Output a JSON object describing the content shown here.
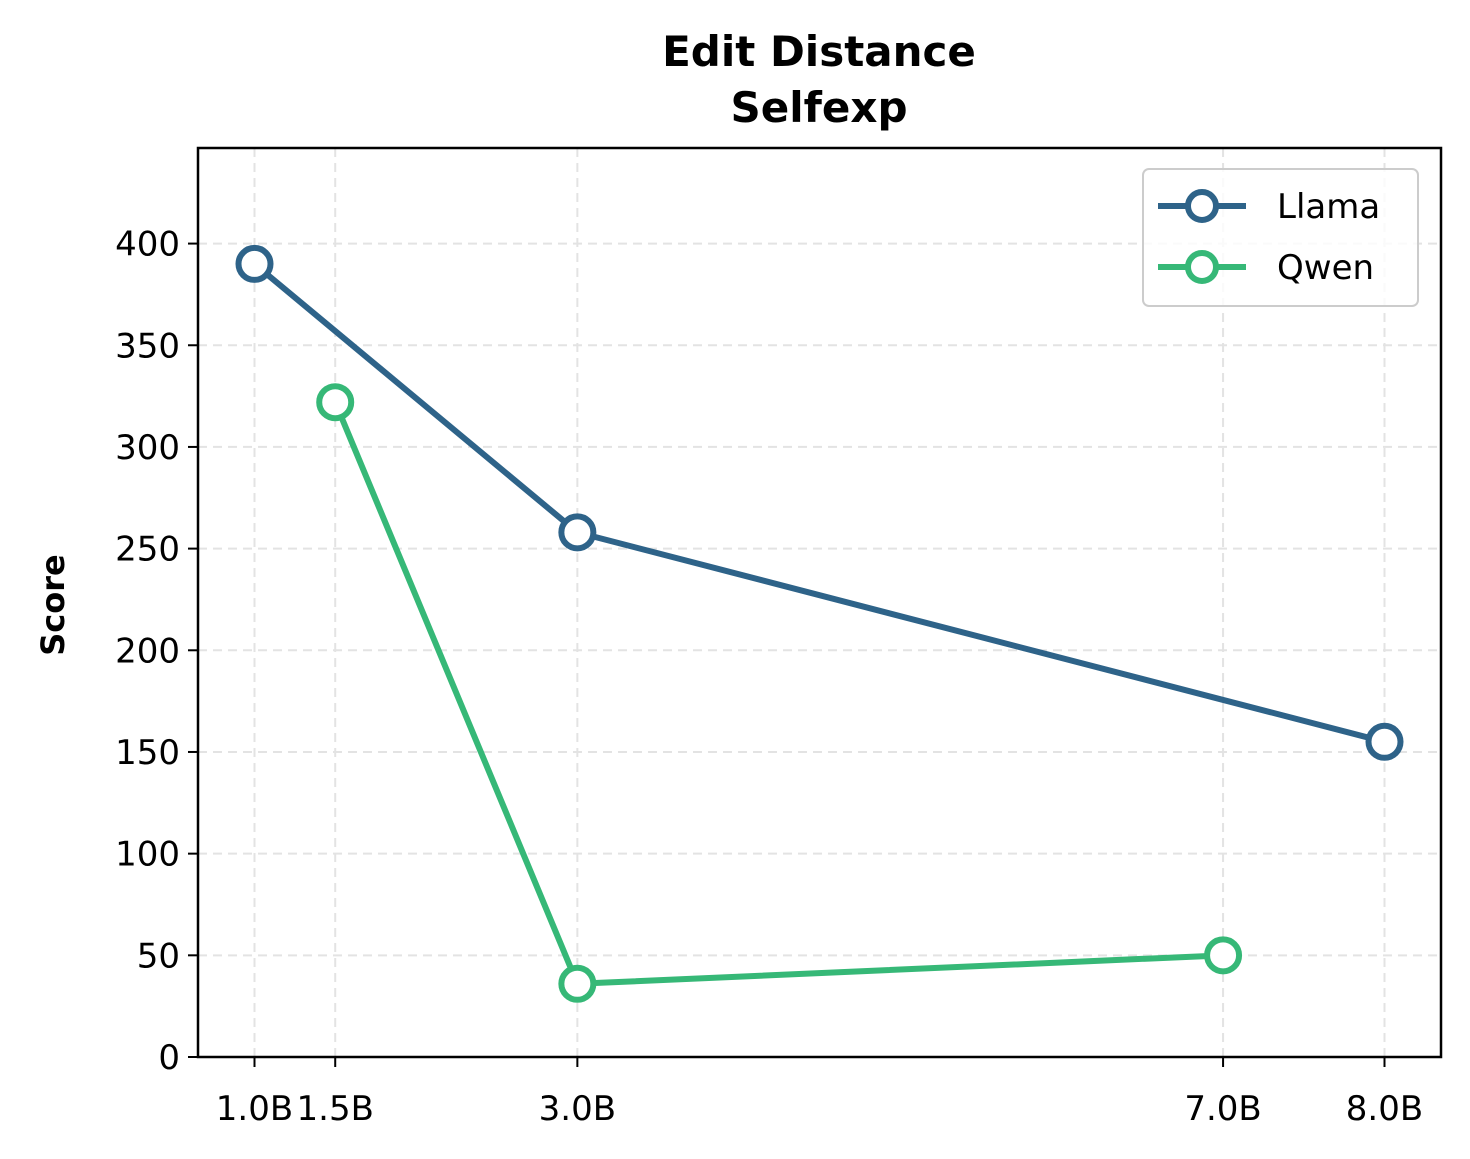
{
  "chart_data": {
    "type": "line",
    "title": "Edit Distance",
    "subtitle": "Selfexp",
    "xlabel": "",
    "ylabel": "Score",
    "x": [
      1.0,
      1.5,
      3.0,
      7.0,
      8.0
    ],
    "x_tick_labels": [
      "1.0B",
      "1.5B",
      "3.0B",
      "7.0B",
      "8.0B"
    ],
    "y_ticks": [
      0,
      50,
      100,
      150,
      200,
      250,
      300,
      350,
      400
    ],
    "ylim": [
      0,
      447
    ],
    "xlim": [
      0.65,
      8.35
    ],
    "grid": true,
    "legend_position": "top-right",
    "series": [
      {
        "name": "Llama",
        "color": "#2e6389",
        "points": [
          [
            1.0,
            390
          ],
          [
            3.0,
            258
          ],
          [
            8.0,
            155
          ]
        ]
      },
      {
        "name": "Qwen",
        "color": "#36b877",
        "points": [
          [
            1.5,
            322
          ],
          [
            3.0,
            36
          ],
          [
            7.0,
            50
          ]
        ]
      }
    ]
  }
}
